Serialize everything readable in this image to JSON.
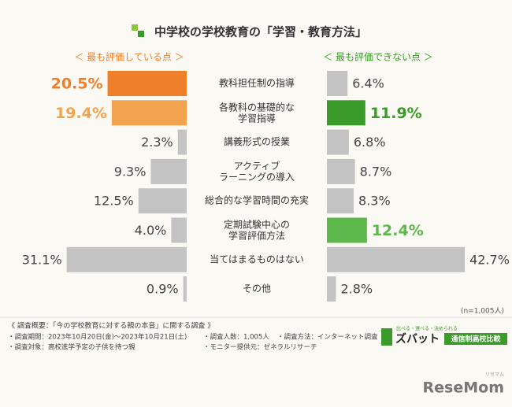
{
  "chart_data": {
    "type": "butterfly",
    "title": "中学校の学校教育の「学習・教育方法」",
    "categories": [
      "教科担任制の指導",
      "各教科の基礎的な\n学習指導",
      "講義形式の授業",
      "アクティブ\nラーニングの導入",
      "総合的な学習時間の充実",
      "定期試験中心の\n学習評価方法",
      "当てはまるものはない",
      "その他"
    ],
    "series": [
      {
        "name": "＜ 最も評価している点 ＞",
        "color": "#f07f2a",
        "default_color": "#c3c3c3",
        "colors": [
          "#f07f2a",
          "#f3a24e",
          "#c3c3c3",
          "#c3c3c3",
          "#c3c3c3",
          "#c3c3c3",
          "#c3c3c3",
          "#c3c3c3"
        ],
        "values": [
          20.5,
          19.4,
          2.3,
          9.3,
          12.5,
          4.0,
          31.1,
          0.9
        ],
        "value_labels": [
          "20.5%",
          "19.4%",
          "2.3%",
          "9.3%",
          "12.5%",
          "4.0%",
          "31.1%",
          "0.9%"
        ]
      },
      {
        "name": "＜ 最も評価できない点 ＞",
        "color": "#3a9a2a",
        "default_color": "#c3c3c3",
        "colors": [
          "#c3c3c3",
          "#3a9a2a",
          "#c3c3c3",
          "#c3c3c3",
          "#c3c3c3",
          "#5db84b",
          "#c3c3c3",
          "#c3c3c3"
        ],
        "values": [
          6.4,
          11.9,
          6.8,
          8.7,
          8.3,
          12.4,
          42.7,
          2.8
        ],
        "value_labels": [
          "6.4%",
          "11.9%",
          "6.8%",
          "8.7%",
          "8.3%",
          "12.4%",
          "42.7%",
          "2.8%"
        ]
      }
    ],
    "note": "(n=1,005人)"
  },
  "footer": {
    "heading": "《 調査概要：「今の学校教育に対する親の本音」に関する調査 》",
    "lines": [
      "・調査期間：2023年10月20日(金)～2023年10月21日(土)",
      "・調査人数：1,005人",
      "・調査方法：インターネット調査",
      "・調査対象：高校進学予定の子供を持つ親",
      "・モニター提供元：ゼネラルリサーチ"
    ],
    "logo_tagline": "比べる・選べる・決められる",
    "logo_name": "ズバット",
    "logo_badge": "通信制高校比較"
  },
  "brand": {
    "name": "ReseMom",
    "kana": "リセマム"
  }
}
